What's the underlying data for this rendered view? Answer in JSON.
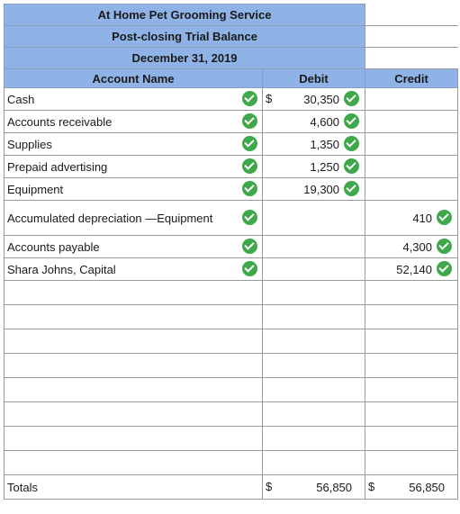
{
  "header": {
    "company": "At Home Pet Grooming Service",
    "report": "Post-closing Trial Balance",
    "date": "December 31, 2019"
  },
  "columns": {
    "account": "Account Name",
    "debit": "Debit",
    "credit": "Credit"
  },
  "currency_symbol": "$",
  "rows": [
    {
      "account": "Cash",
      "debit": "30,350",
      "credit": ""
    },
    {
      "account": "Accounts receivable",
      "debit": "4,600",
      "credit": ""
    },
    {
      "account": "Supplies",
      "debit": "1,350",
      "credit": ""
    },
    {
      "account": "Prepaid advertising",
      "debit": "1,250",
      "credit": ""
    },
    {
      "account": "Equipment",
      "debit": "19,300",
      "credit": ""
    },
    {
      "account": "Accumulated depreciation —Equipment",
      "debit": "",
      "credit": "410"
    },
    {
      "account": "Accounts payable",
      "debit": "",
      "credit": "4,300"
    },
    {
      "account": "Shara Johns, Capital",
      "debit": "",
      "credit": "52,140"
    }
  ],
  "totals": {
    "label": "Totals",
    "debit": "56,850",
    "credit": "56,850"
  },
  "colors": {
    "header_bg": "#8fb3e6",
    "check_green": "#3ea84a"
  },
  "icons": {
    "correct": "check-circle-icon"
  }
}
